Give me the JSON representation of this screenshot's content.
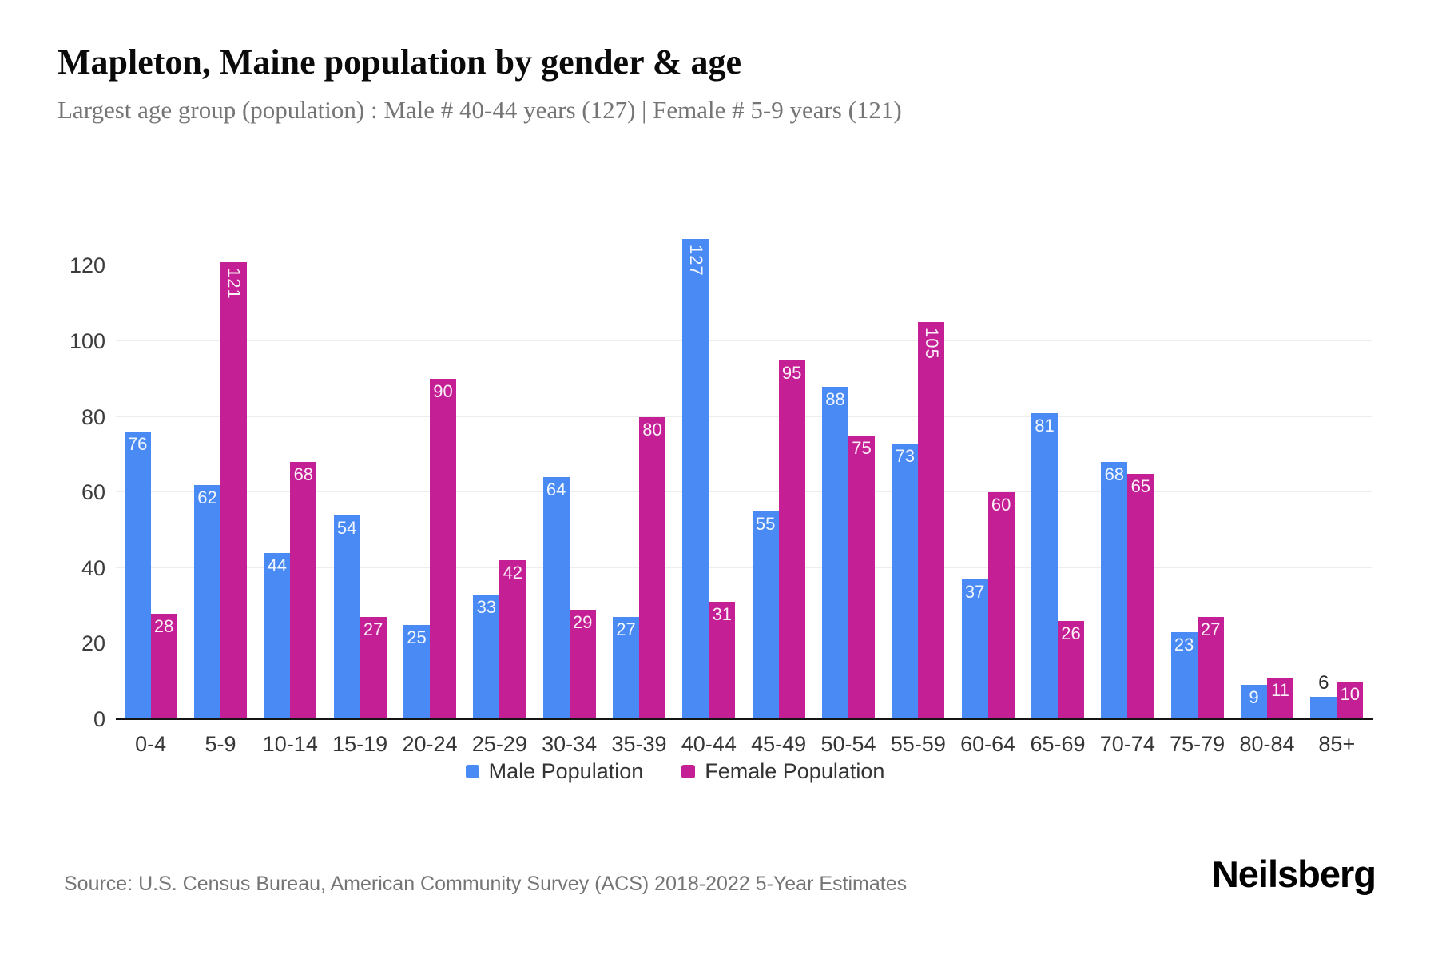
{
  "header": {
    "title": "Mapleton, Maine population by gender & age",
    "subtitle": "Largest age group (population) : Male # 40-44 years (127) | Female # 5-9 years (121)"
  },
  "chart_data": {
    "type": "bar",
    "title": "Mapleton, Maine population by gender & age",
    "subtitle": "Largest age group (population) : Male # 40-44 years (127) | Female # 5-9 years (121)",
    "categories": [
      "0-4",
      "5-9",
      "10-14",
      "15-19",
      "20-24",
      "25-29",
      "30-34",
      "35-39",
      "40-44",
      "45-49",
      "50-54",
      "55-59",
      "60-64",
      "65-69",
      "70-74",
      "75-79",
      "80-84",
      "85+"
    ],
    "series": [
      {
        "name": "Male Population",
        "color": "#4a8af4",
        "values": [
          76,
          62,
          44,
          54,
          25,
          33,
          64,
          27,
          127,
          55,
          88,
          73,
          37,
          81,
          68,
          23,
          9,
          6
        ]
      },
      {
        "name": "Female Population",
        "color": "#c51f96",
        "values": [
          28,
          121,
          68,
          27,
          90,
          42,
          29,
          80,
          31,
          95,
          75,
          105,
          60,
          26,
          65,
          27,
          11,
          10
        ]
      }
    ],
    "xlabel": "",
    "ylabel": "",
    "ylim": [
      0,
      130
    ],
    "yticks": [
      0,
      20,
      40,
      60,
      80,
      100,
      120
    ],
    "grid": "horizontal",
    "legend_position": "bottom",
    "value_labels": "inside bar top, white; rotated vertical when value >= 100; dark above bar when bar too short"
  },
  "legend": {
    "items": [
      {
        "label": "Male Population",
        "color": "#4a8af4"
      },
      {
        "label": "Female Population",
        "color": "#c51f96"
      }
    ]
  },
  "footer": {
    "source": "Source: U.S. Census Bureau, American Community Survey (ACS) 2018-2022 5-Year Estimates",
    "brand": "Neilsberg"
  },
  "colors": {
    "male": "#4a8af4",
    "female": "#c51f96",
    "gridline": "#ededed",
    "axis_line": "#151515",
    "tick_text": "#3c3c3c",
    "subtitle_text": "#757575"
  }
}
